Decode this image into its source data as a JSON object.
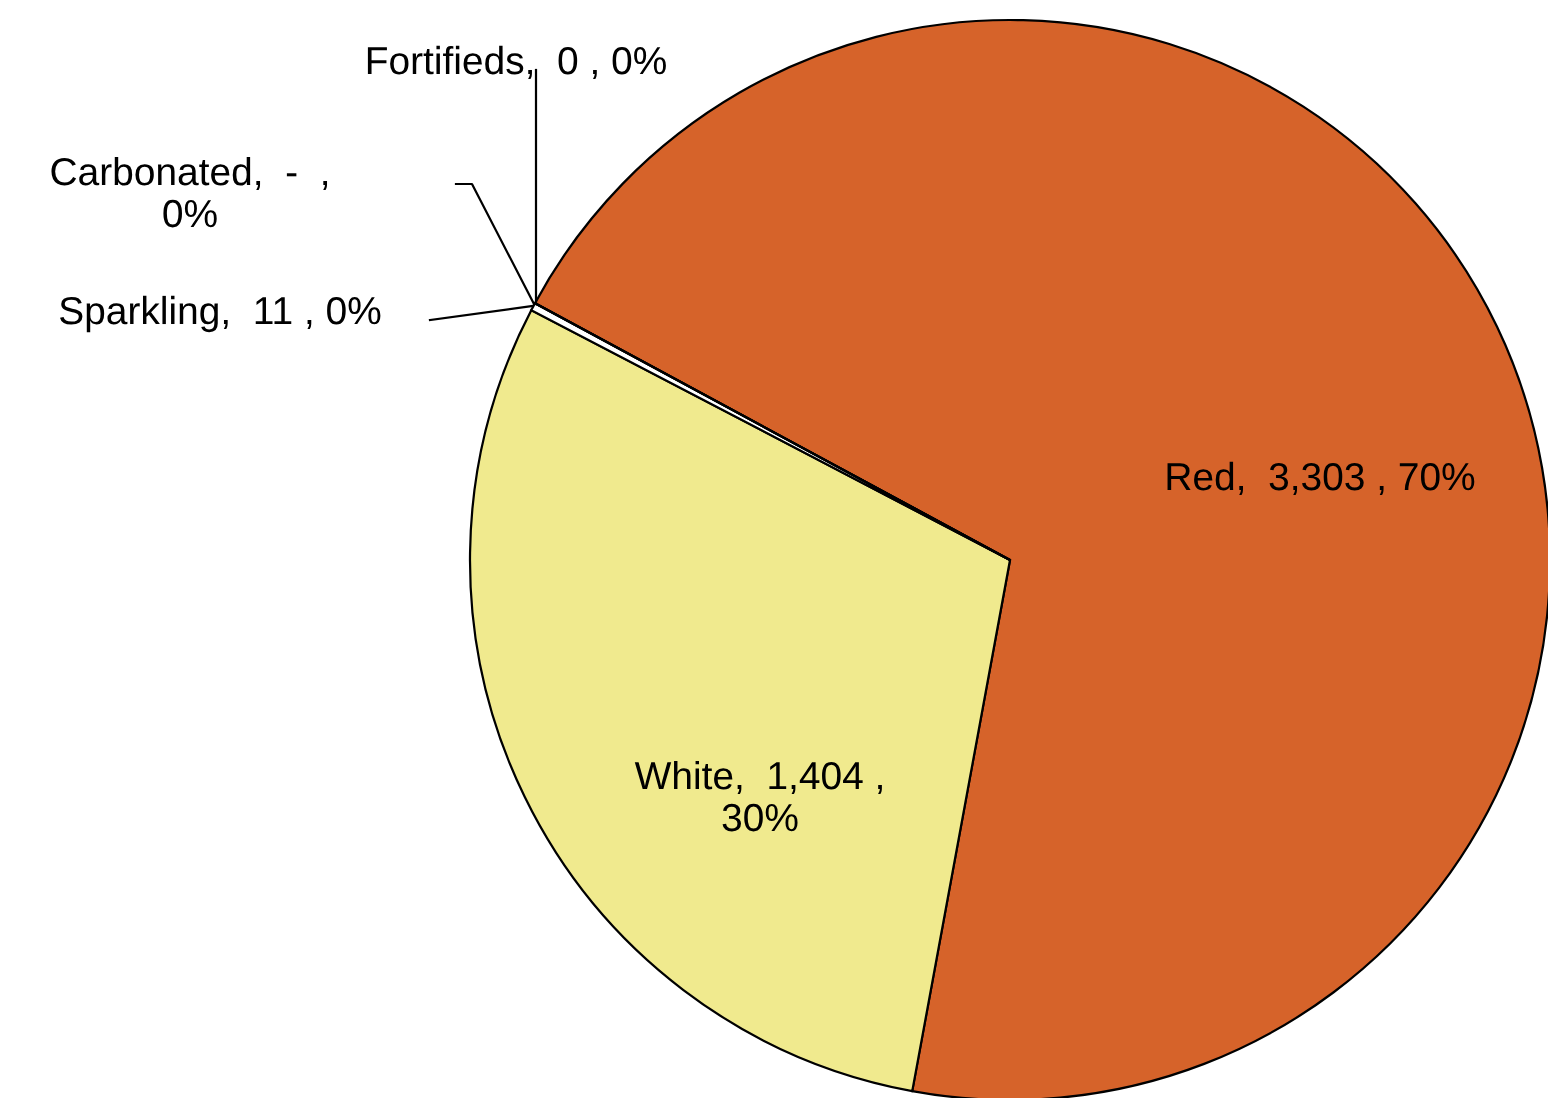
{
  "chart_data": {
    "type": "pie",
    "categories": [
      "Red",
      "White",
      "Sparkling",
      "Carbonated",
      "Fortifieds"
    ],
    "values": [
      3303,
      1404,
      11,
      0,
      0
    ],
    "value_labels": [
      ",  3,303 , 70%",
      ",  1,404 ,\n30%",
      ",  11 , 0%",
      ",  -  ,\n0%",
      ",  0 , 0%"
    ],
    "colors": [
      "#d6632a",
      "#f0ea8e",
      "#ffffff",
      "#ffffff",
      "#ffffff"
    ]
  }
}
